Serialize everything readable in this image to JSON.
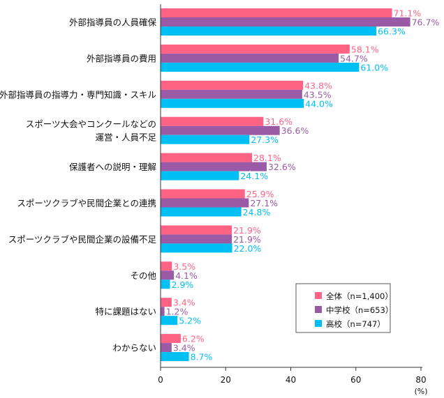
{
  "chart_data": {
    "type": "bar",
    "orientation": "horizontal",
    "categories": [
      [
        "外部指導員の人員確保"
      ],
      [
        "外部指導員の費用"
      ],
      [
        "外部指導員の指導力・専門知識・スキル"
      ],
      [
        "スポーツ大会やコンクールなどの",
        "運営・人員不足"
      ],
      [
        "保護者への説明・理解"
      ],
      [
        "スポーツクラブや民間企業との連携"
      ],
      [
        "スポーツクラブや民間企業の設備不足"
      ],
      [
        "その他"
      ],
      [
        "特に課題はない"
      ],
      [
        "わからない"
      ]
    ],
    "series": [
      {
        "name": "全体（n=1,400）",
        "color": "#ff6384",
        "values": [
          71.1,
          58.1,
          43.8,
          31.6,
          28.1,
          25.9,
          21.9,
          3.5,
          3.4,
          6.2
        ]
      },
      {
        "name": "中学校（n=653）",
        "color": "#9b5aa5",
        "values": [
          76.7,
          54.7,
          43.5,
          36.6,
          32.6,
          27.1,
          21.9,
          4.1,
          1.2,
          3.4
        ]
      },
      {
        "name": "高校（n=747）",
        "color": "#00bff3",
        "values": [
          66.3,
          61.0,
          44.0,
          27.3,
          24.1,
          24.8,
          22.0,
          2.9,
          5.2,
          8.7
        ]
      }
    ],
    "value_suffix": "%",
    "xlim": [
      0,
      80
    ],
    "xticks": [
      "0",
      "20",
      "40",
      "60",
      "80"
    ],
    "xunit": "(%)",
    "legend_position": "bottom-right",
    "grid": false
  }
}
